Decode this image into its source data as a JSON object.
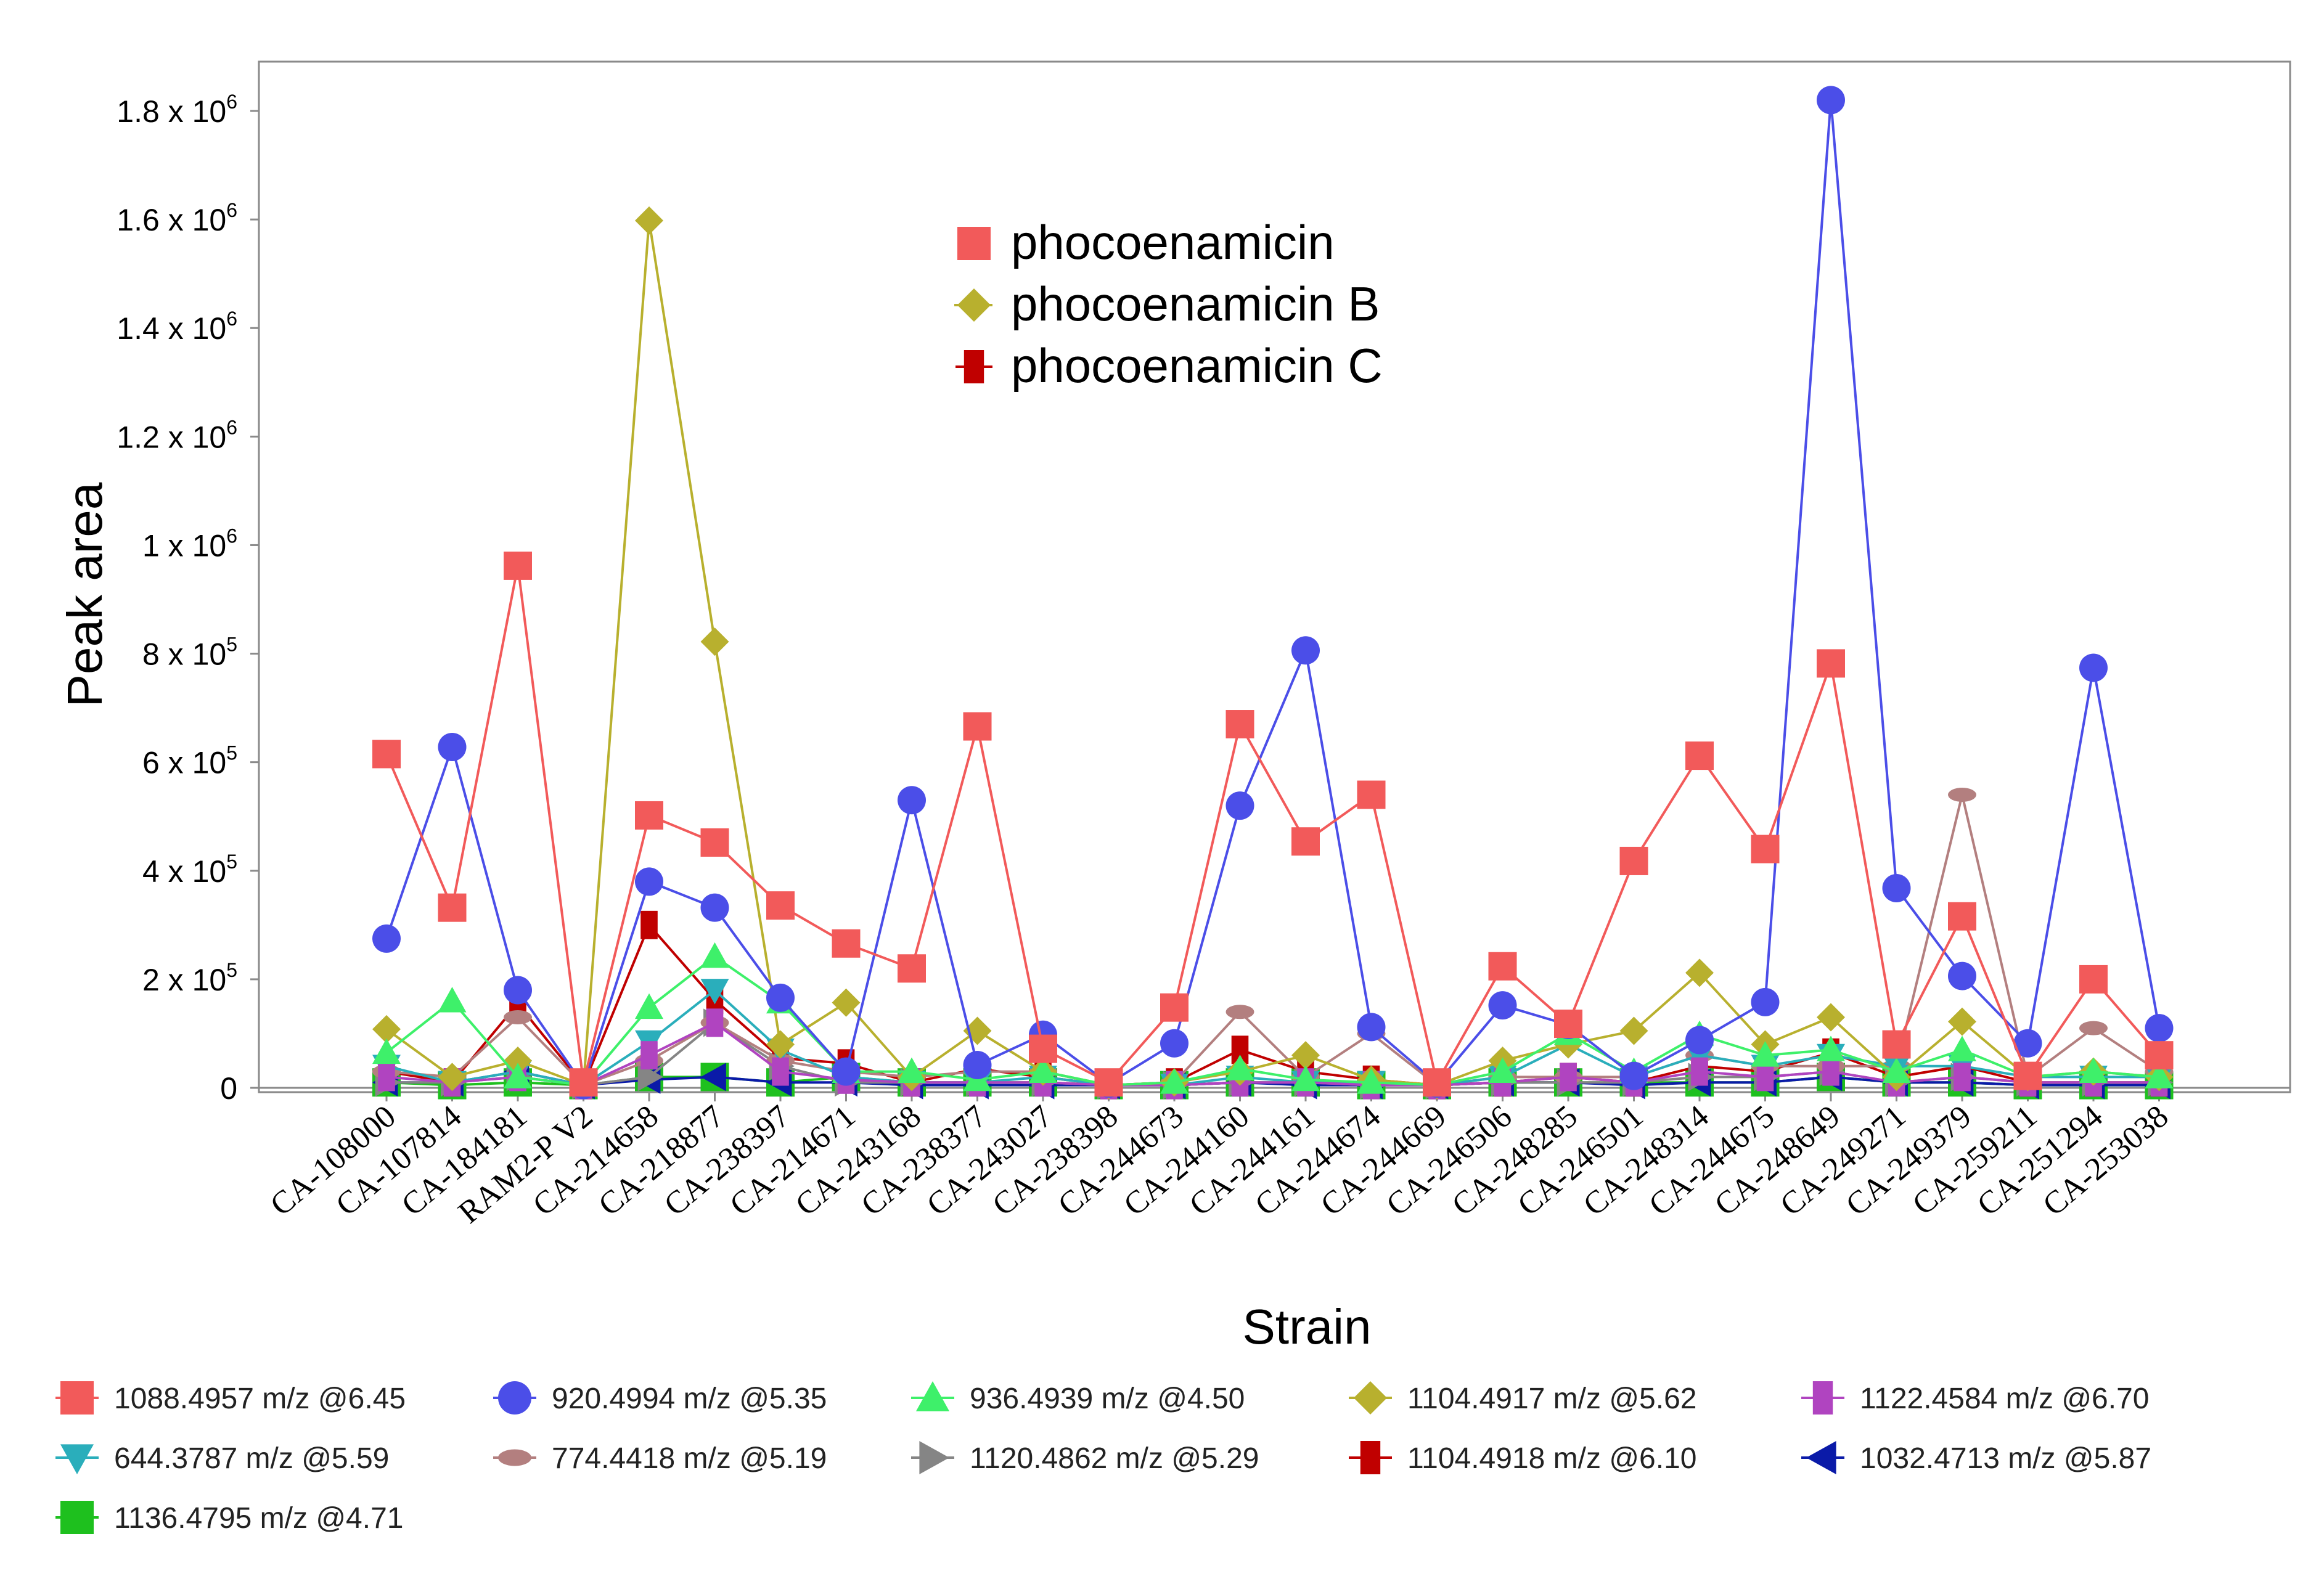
{
  "chart_data": {
    "type": "line",
    "xlabel": "Strain",
    "ylabel": "Peak area",
    "ylim": [
      0,
      1900000
    ],
    "grid": false,
    "categories": [
      "CA-108000",
      "CA-107814",
      "CA-184181",
      "RAM2-P V2",
      "CA-214658",
      "CA-218877",
      "CA-238397",
      "CA-214671",
      "CA-243168",
      "CA-238377",
      "CA-243027",
      "CA-238398",
      "CA-244673",
      "CA-244160",
      "CA-244161",
      "CA-244674",
      "CA-244669",
      "CA-246506",
      "CA-248285",
      "CA-246501",
      "CA-248314",
      "CA-244675",
      "CA-248649",
      "CA-249271",
      "CA-249379",
      "CA-259211",
      "CA-251294",
      "CA-253038"
    ],
    "y_ticks": [
      {
        "value": 0,
        "label": "0"
      },
      {
        "value": 200000,
        "label": "2 x 10",
        "exp": "5"
      },
      {
        "value": 400000,
        "label": "4 x 10",
        "exp": "5"
      },
      {
        "value": 600000,
        "label": "6 x 10",
        "exp": "5"
      },
      {
        "value": 800000,
        "label": "8 x 10",
        "exp": "5"
      },
      {
        "value": 1000000,
        "label": "1 x 10",
        "exp": "6"
      },
      {
        "value": 1200000,
        "label": "1.2 x 10",
        "exp": "6"
      },
      {
        "value": 1400000,
        "label": "1.4 x 10",
        "exp": "6"
      },
      {
        "value": 1600000,
        "label": "1.6 x 10",
        "exp": "6"
      },
      {
        "value": 1800000,
        "label": "1.8 x 10",
        "exp": "6"
      }
    ],
    "series": [
      {
        "name": "1088.4957 m/z @6.45",
        "color": "#f25a5a",
        "marker": "square",
        "values": [
          615000,
          332000,
          962000,
          10000,
          502000,
          452000,
          336000,
          266000,
          220000,
          666000,
          72000,
          10000,
          148000,
          670000,
          454000,
          540000,
          10000,
          224000,
          118000,
          418000,
          612000,
          440000,
          782000,
          80000,
          316000,
          22000,
          200000,
          60000
        ]
      },
      {
        "name": "920.4994 m/z @5.35",
        "color": "#4b4ee8",
        "marker": "circle",
        "values": [
          275000,
          628000,
          180000,
          5000,
          380000,
          332000,
          166000,
          30000,
          530000,
          42000,
          98000,
          8000,
          82000,
          520000,
          806000,
          112000,
          8000,
          152000,
          116000,
          22000,
          88000,
          158000,
          1820000,
          368000,
          206000,
          82000,
          774000,
          110000
        ]
      },
      {
        "name": "936.4939 m/z @4.50",
        "color": "#3ef06a",
        "marker": "triangle-up",
        "values": [
          65000,
          160000,
          20000,
          5000,
          148000,
          242000,
          158000,
          30000,
          30000,
          15000,
          30000,
          5000,
          10000,
          35000,
          15000,
          10000,
          5000,
          30000,
          100000,
          30000,
          98000,
          60000,
          70000,
          30000,
          70000,
          20000,
          30000,
          20000
        ]
      },
      {
        "name": "1104.4917 m/z @5.62",
        "color": "#b8b02e",
        "marker": "diamond",
        "values": [
          108000,
          20000,
          50000,
          5000,
          1598000,
          822000,
          80000,
          157000,
          20000,
          105000,
          30000,
          5000,
          10000,
          30000,
          60000,
          15000,
          5000,
          50000,
          80000,
          105000,
          212000,
          80000,
          130000,
          20000,
          122000,
          20000,
          30000,
          20000
        ]
      },
      {
        "name": "1122.4584 m/z @6.70",
        "color": "#b044c0",
        "marker": "bar",
        "values": [
          20000,
          10000,
          20000,
          5000,
          60000,
          120000,
          30000,
          15000,
          10000,
          10000,
          10000,
          5000,
          5000,
          10000,
          10000,
          5000,
          5000,
          10000,
          20000,
          10000,
          30000,
          20000,
          30000,
          10000,
          20000,
          10000,
          10000,
          10000
        ]
      },
      {
        "name": "644.3787 m/z @5.59",
        "color": "#2aaebb",
        "marker": "triangle-down",
        "values": [
          40000,
          10000,
          30000,
          5000,
          85000,
          180000,
          70000,
          20000,
          10000,
          10000,
          20000,
          5000,
          5000,
          20000,
          10000,
          10000,
          5000,
          20000,
          80000,
          20000,
          60000,
          40000,
          60000,
          40000,
          40000,
          20000,
          20000,
          20000
        ]
      },
      {
        "name": "774.4418 m/z @5.19",
        "color": "#b37f7f",
        "marker": "ellipse",
        "values": [
          30000,
          20000,
          130000,
          5000,
          50000,
          120000,
          50000,
          30000,
          20000,
          30000,
          30000,
          5000,
          10000,
          140000,
          20000,
          100000,
          5000,
          20000,
          20000,
          20000,
          60000,
          40000,
          40000,
          40000,
          540000,
          20000,
          110000,
          30000
        ]
      },
      {
        "name": "1120.4862 m/z @5.29",
        "color": "#858585",
        "marker": "triangle-right",
        "values": [
          10000,
          10000,
          20000,
          5000,
          20000,
          120000,
          40000,
          10000,
          10000,
          10000,
          10000,
          5000,
          5000,
          10000,
          10000,
          5000,
          5000,
          10000,
          10000,
          10000,
          20000,
          20000,
          30000,
          10000,
          20000,
          10000,
          10000,
          10000
        ]
      },
      {
        "name": "1104.4918 m/z @6.10",
        "color": "#c00000",
        "marker": "bar",
        "values": [
          30000,
          10000,
          155000,
          5000,
          300000,
          162000,
          55000,
          45000,
          10000,
          35000,
          20000,
          5000,
          10000,
          70000,
          30000,
          15000,
          5000,
          10000,
          20000,
          10000,
          40000,
          30000,
          65000,
          20000,
          40000,
          10000,
          10000,
          10000
        ]
      },
      {
        "name": "1032.4713 m/z @5.87",
        "color": "#0a1aa8",
        "marker": "triangle-left",
        "values": [
          10000,
          10000,
          30000,
          5000,
          15000,
          20000,
          10000,
          10000,
          5000,
          5000,
          5000,
          5000,
          5000,
          10000,
          5000,
          5000,
          5000,
          10000,
          10000,
          5000,
          10000,
          10000,
          20000,
          10000,
          10000,
          5000,
          5000,
          5000
        ]
      },
      {
        "name": "1136.4795 m/z @4.71",
        "color": "#1ec01e",
        "marker": "square",
        "values": [
          10000,
          5000,
          10000,
          5000,
          20000,
          20000,
          10000,
          20000,
          10000,
          10000,
          10000,
          5000,
          5000,
          10000,
          10000,
          5000,
          5000,
          10000,
          10000,
          10000,
          10000,
          10000,
          20000,
          10000,
          10000,
          5000,
          5000,
          5000
        ]
      }
    ],
    "inset_legend": [
      {
        "label": "phocoenamicin",
        "color": "#f25a5a",
        "marker": "square"
      },
      {
        "label": "phocoenamicin B",
        "color": "#b8b02e",
        "marker": "diamond"
      },
      {
        "label": "phocoenamicin C",
        "color": "#c00000",
        "marker": "bar"
      }
    ]
  }
}
